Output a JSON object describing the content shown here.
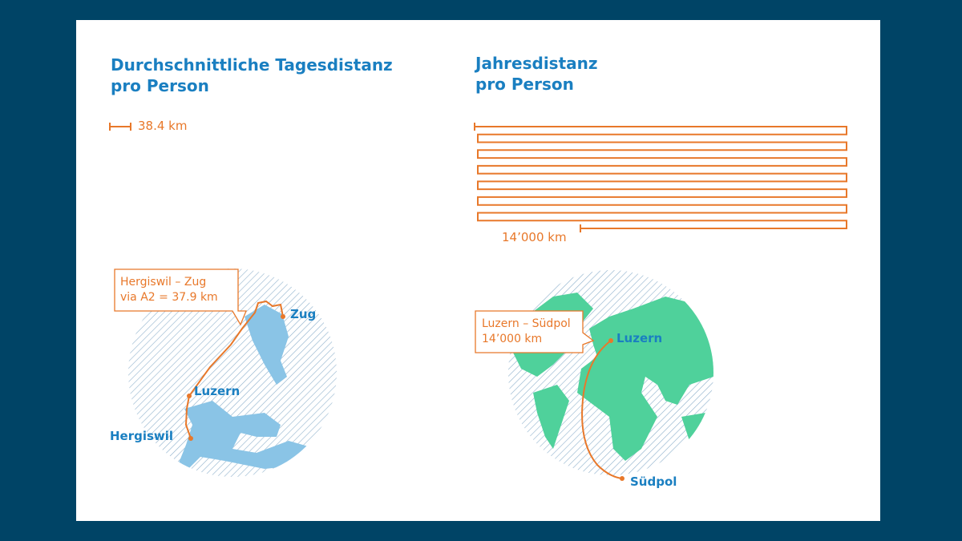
{
  "left": {
    "title": [
      "Durchschnittliche Tagesdistanz",
      "pro Person"
    ],
    "distance_label": "38.4 km",
    "callout": [
      "Hergiswil – Zug",
      "via A2 = 37.9 km"
    ],
    "places": [
      "Zug",
      "Luzern",
      "Hergiswil"
    ]
  },
  "right": {
    "title": [
      "Jahresdistanz",
      "pro Person"
    ],
    "distance_label": "14’000 km",
    "callout": [
      "Luzern – Südpol",
      "14’000 km"
    ],
    "places": [
      "Luzern",
      "Südpol"
    ]
  }
}
